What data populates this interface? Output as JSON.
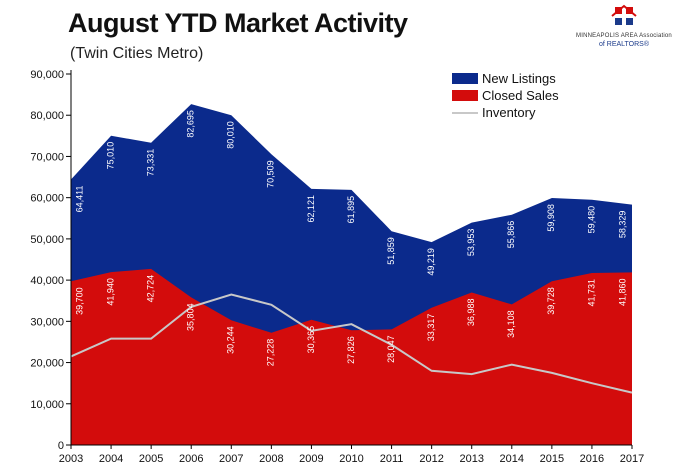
{
  "header": {
    "title": "August YTD Market Activity",
    "subtitle": "(Twin Cities Metro)"
  },
  "logo": {
    "line1": "MINNEAPOLIS AREA Association",
    "line2": "of REALTORS®"
  },
  "colors": {
    "new_listings": "#0b2a8c",
    "closed_sales": "#d30c0c",
    "inventory": "#c8c8c8",
    "axis": "#000000",
    "label": "#ffffff"
  },
  "chart_data": {
    "type": "area",
    "title": "August YTD Market Activity",
    "subtitle": "(Twin Cities Metro)",
    "xlabel": "",
    "ylabel": "",
    "ylim": [
      0,
      90000
    ],
    "yticks": [
      "0",
      "10,000",
      "20,000",
      "30,000",
      "40,000",
      "50,000",
      "60,000",
      "70,000",
      "80,000",
      "90,000"
    ],
    "grid": false,
    "legend": "top-right",
    "categories": [
      "2003",
      "2004",
      "2005",
      "2006",
      "2007",
      "2008",
      "2009",
      "2010",
      "2011",
      "2012",
      "2013",
      "2014",
      "2015",
      "2016",
      "2017"
    ],
    "series": [
      {
        "name": "New Listings",
        "kind": "area",
        "values": [
          64411,
          75010,
          73331,
          82695,
          80010,
          70509,
          62121,
          61895,
          51859,
          49219,
          53953,
          55866,
          59908,
          59480,
          58329
        ],
        "labels": [
          "64,411",
          "75,010",
          "73,331",
          "82,695",
          "80,010",
          "70,509",
          "62,121",
          "61,895",
          "51,859",
          "49,219",
          "53,953",
          "55,866",
          "59,908",
          "59,480",
          "58,329"
        ]
      },
      {
        "name": "Closed Sales",
        "kind": "area",
        "values": [
          39700,
          41940,
          42724,
          35804,
          30244,
          27228,
          30365,
          27826,
          28047,
          33317,
          36988,
          34108,
          39728,
          41731,
          41860
        ],
        "labels": [
          "39,700",
          "41,940",
          "42,724",
          "35,804",
          "30,244",
          "27,228",
          "30,365",
          "27,826",
          "28,047",
          "33,317",
          "36,988",
          "34,108",
          "39,728",
          "41,731",
          "41,860"
        ]
      },
      {
        "name": "Inventory",
        "kind": "line",
        "values": [
          21500,
          25800,
          25800,
          33500,
          36500,
          34000,
          27700,
          29300,
          24300,
          18000,
          17200,
          19500,
          17500,
          15000,
          12700
        ]
      }
    ]
  }
}
